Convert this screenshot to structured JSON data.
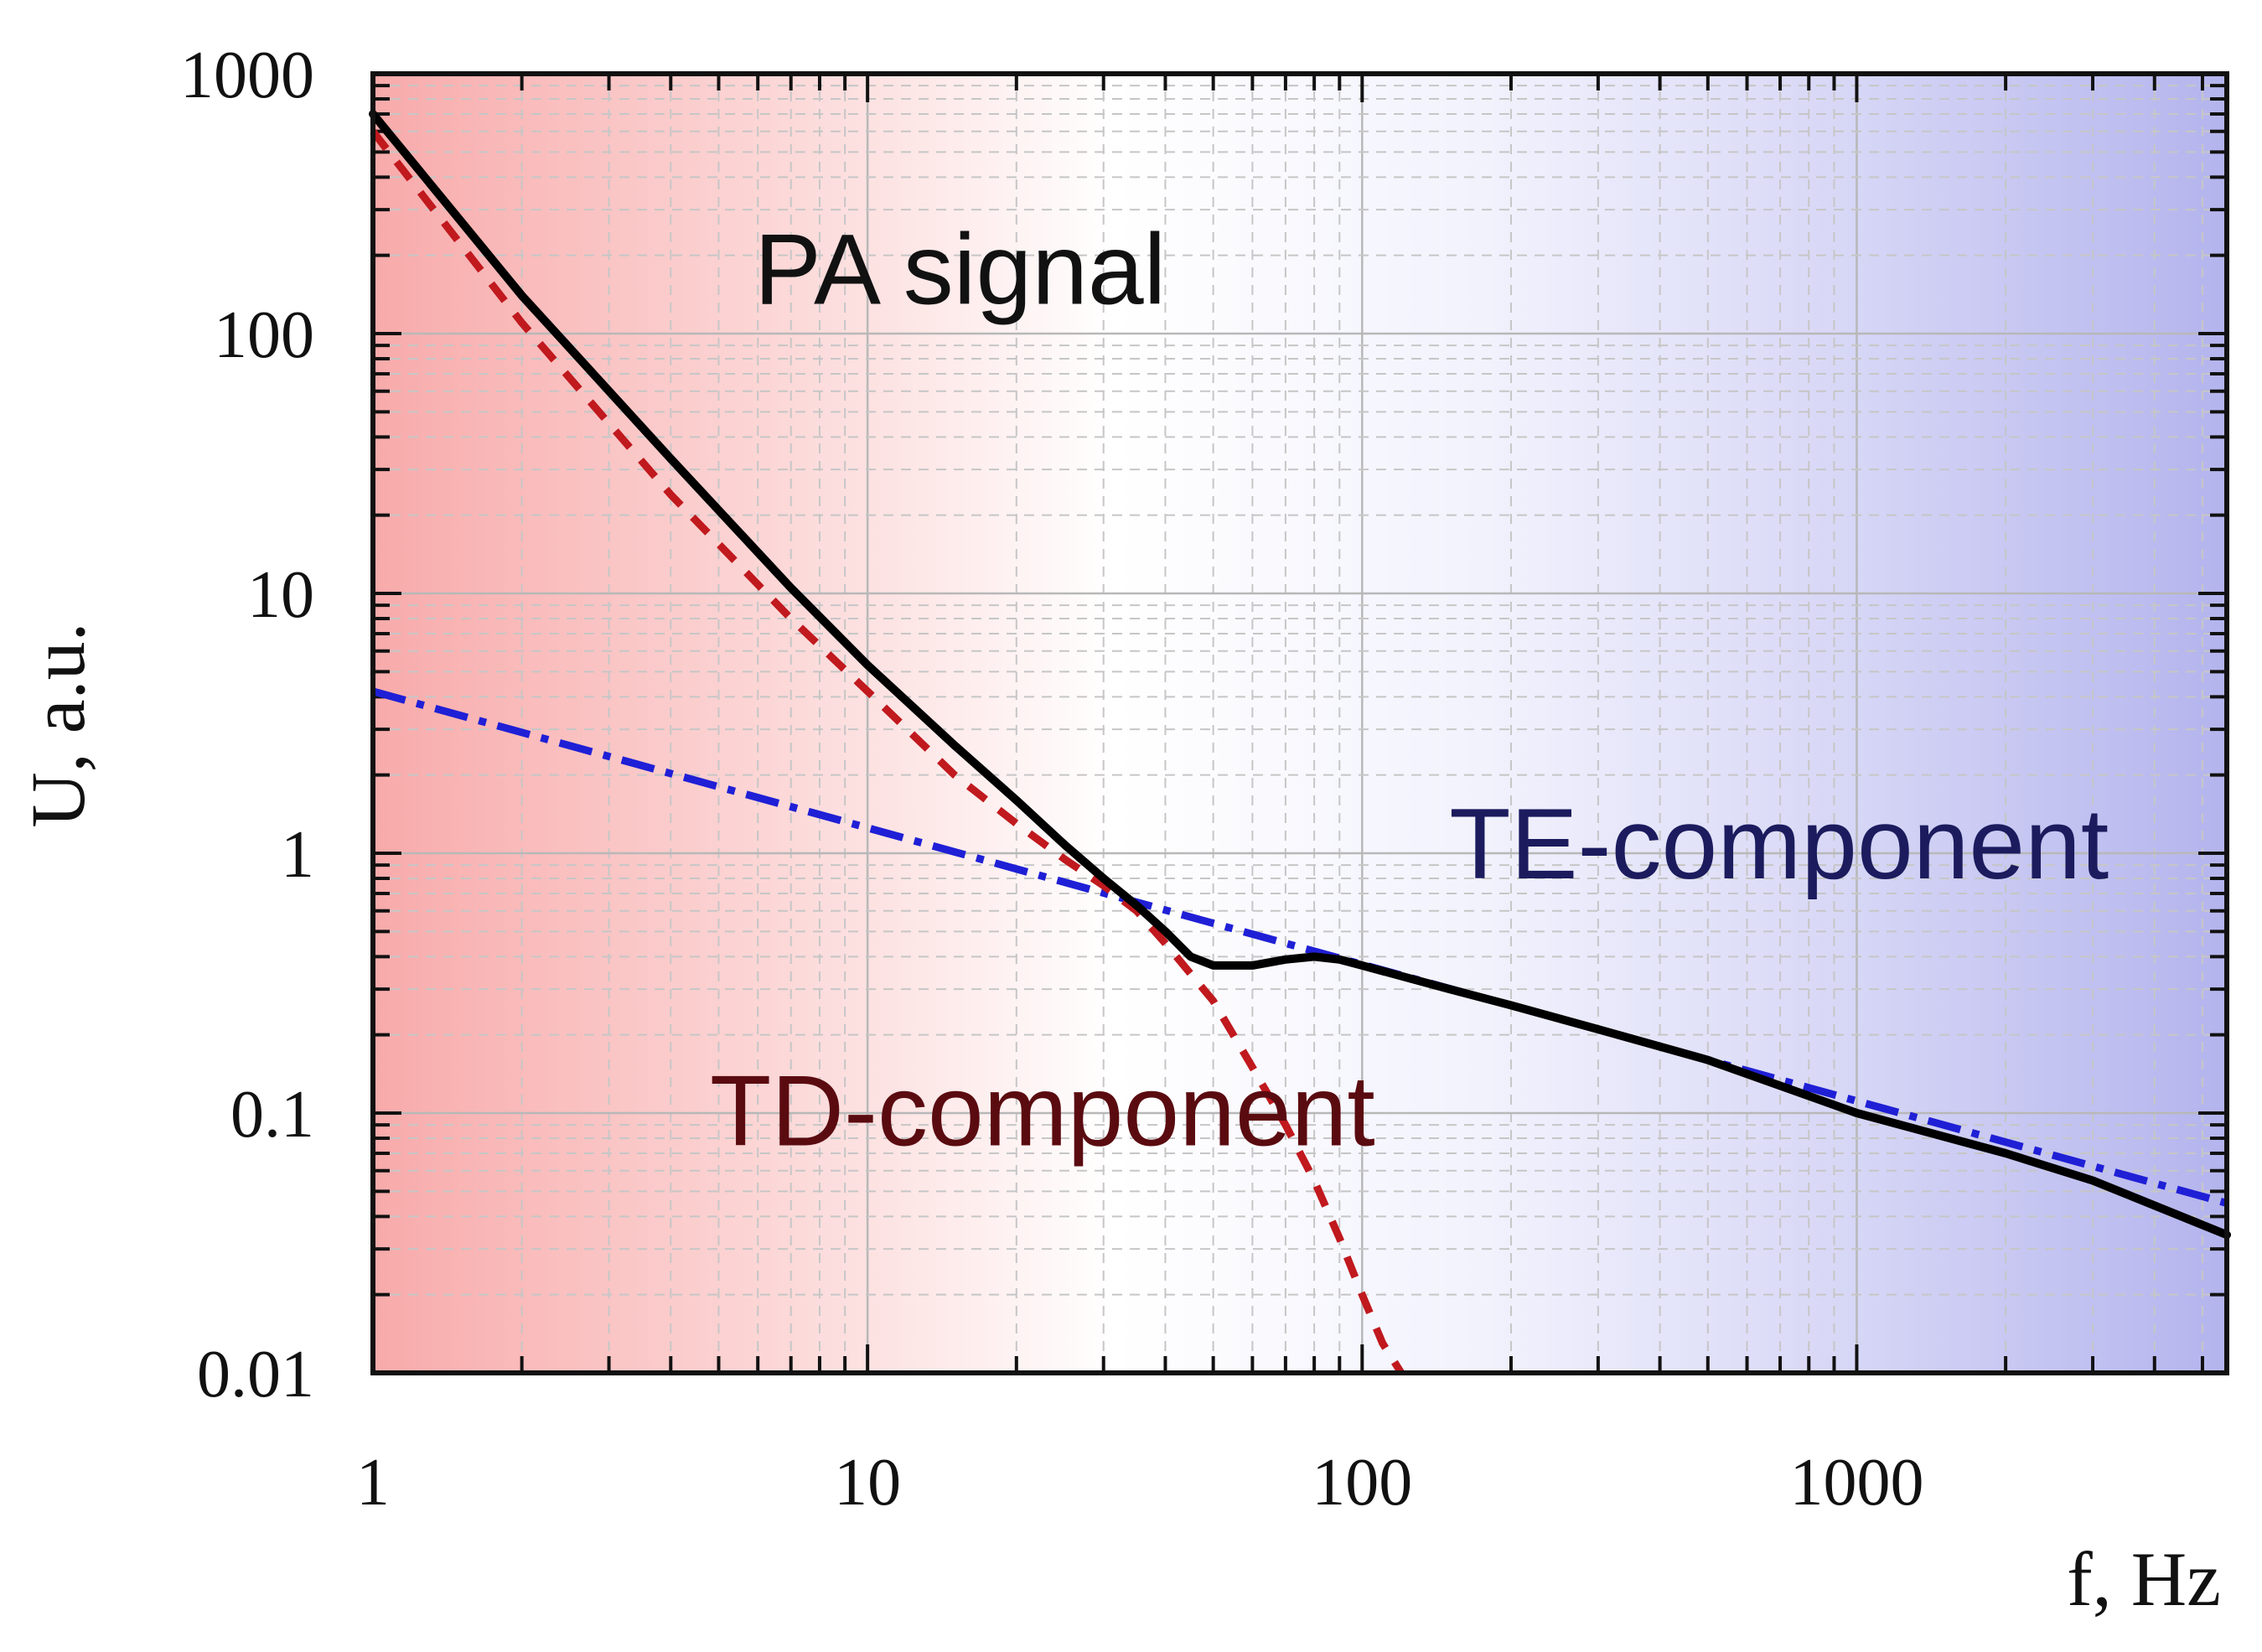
{
  "chart_data": {
    "type": "line",
    "title": "",
    "xlabel": "f, Hz",
    "ylabel": "U, a.u.",
    "xscale": "log",
    "yscale": "log",
    "xlim": [
      1,
      5600
    ],
    "ylim": [
      0.01,
      1000
    ],
    "xticks": [
      1,
      10,
      100,
      1000
    ],
    "xtick_labels": [
      "1",
      "10",
      "100",
      "1000"
    ],
    "yticks": [
      0.01,
      0.1,
      1,
      10,
      100,
      1000
    ],
    "ytick_labels": [
      "0.01",
      "0.1",
      "1",
      "10",
      "100",
      "1000"
    ],
    "grid": true,
    "background": "horizontal gradient from red (low frequency) to blue (high frequency)",
    "series": [
      {
        "name": "PA signal",
        "style": "solid",
        "color": "#000000",
        "x": [
          1,
          2,
          4,
          7,
          10,
          15,
          20,
          25,
          30,
          35,
          40,
          45,
          50,
          60,
          70,
          80,
          90,
          100,
          150,
          200,
          300,
          500,
          1000,
          2000,
          3000,
          5600
        ],
        "y": [
          700,
          140,
          33,
          10.5,
          5.3,
          2.6,
          1.6,
          1.08,
          0.8,
          0.63,
          0.5,
          0.4,
          0.37,
          0.37,
          0.39,
          0.4,
          0.39,
          0.37,
          0.3,
          0.26,
          0.21,
          0.16,
          0.1,
          0.07,
          0.055,
          0.034
        ]
      },
      {
        "name": "TD-component",
        "style": "dashed",
        "color": "#c0191e",
        "x": [
          1,
          2,
          4,
          7,
          10,
          15,
          20,
          25,
          30,
          35,
          40,
          50,
          60,
          70,
          80,
          90,
          100,
          110,
          120
        ],
        "y": [
          600,
          110,
          24,
          8,
          4.2,
          2.0,
          1.3,
          0.95,
          0.75,
          0.6,
          0.45,
          0.27,
          0.15,
          0.09,
          0.055,
          0.033,
          0.02,
          0.013,
          0.01
        ]
      },
      {
        "name": "TE-component",
        "style": "dash-dot",
        "color": "#1f1fd6",
        "x": [
          1,
          5600
        ],
        "y": [
          4.2,
          0.045
        ]
      }
    ],
    "annotations": [
      {
        "text": "PA signal",
        "color": "#111111",
        "at_data": [
          5.9,
          130
        ]
      },
      {
        "text": "TE-component",
        "color": "#1b1b5e",
        "at_data": [
          150,
          0.8
        ]
      },
      {
        "text": "TD-component",
        "color": "#5a0b10",
        "at_data": [
          4.8,
          0.075
        ]
      }
    ],
    "legend": "none (direct labels)"
  }
}
